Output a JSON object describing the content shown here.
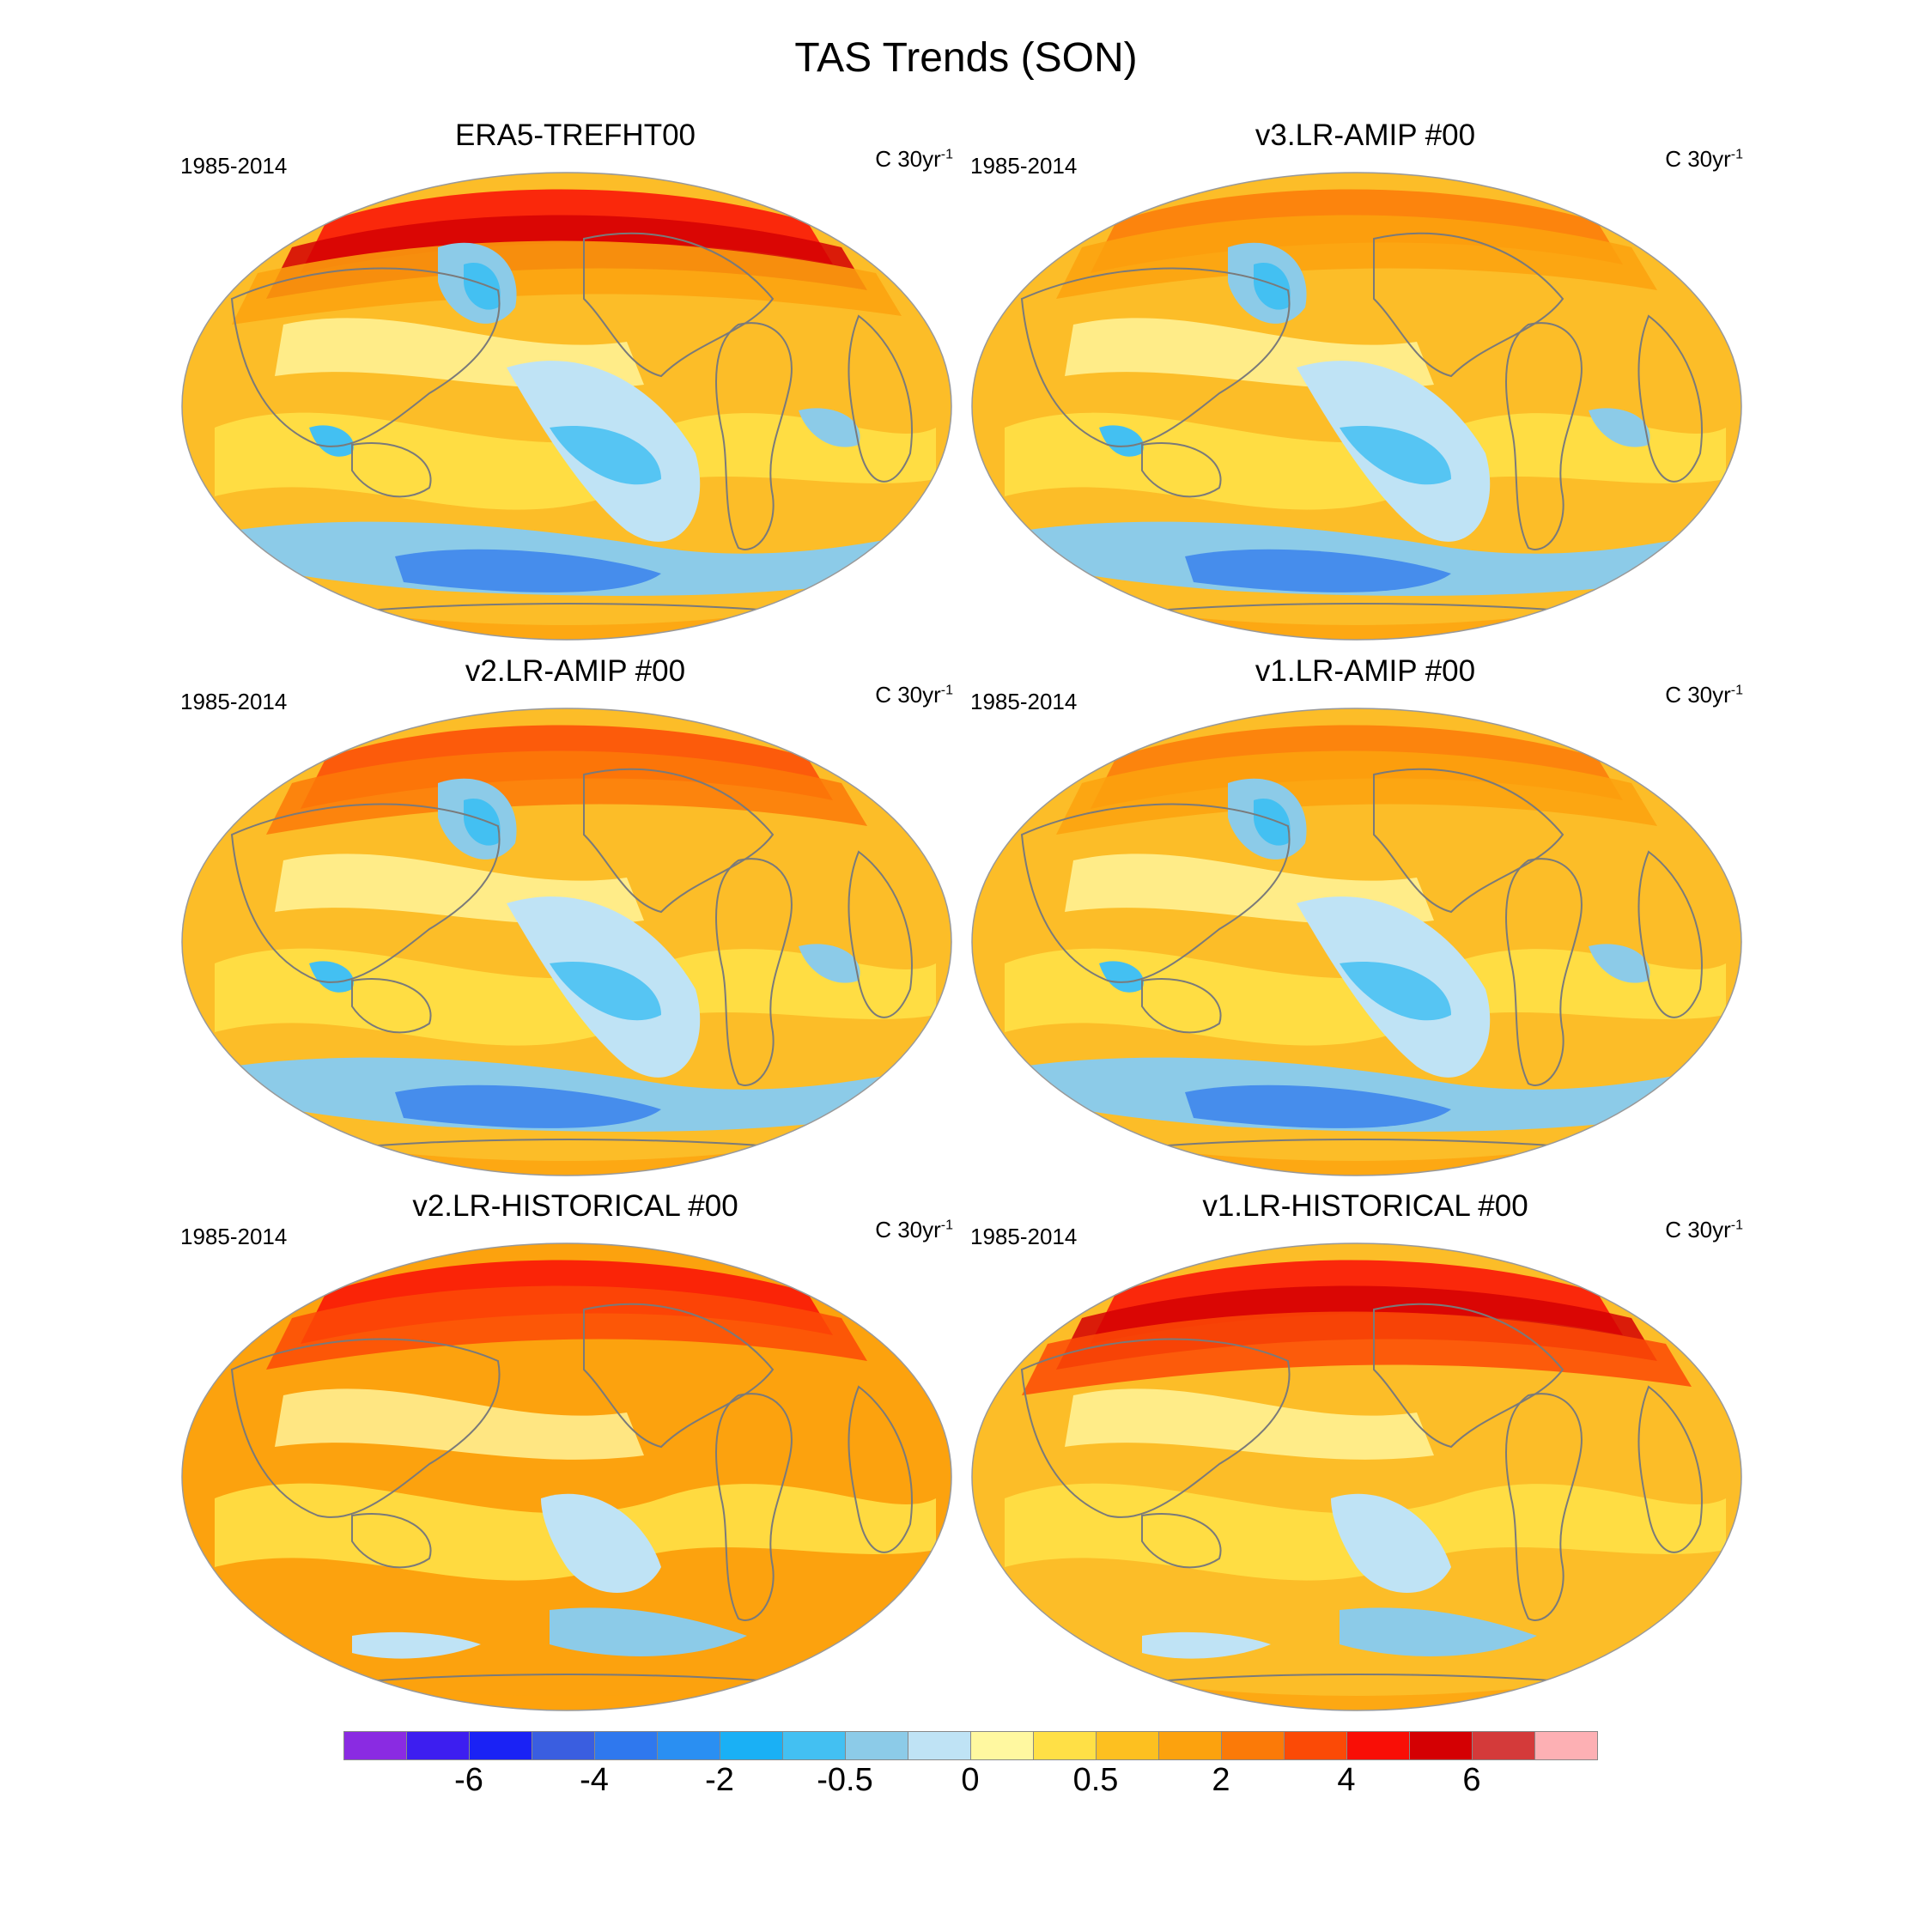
{
  "title": "TAS Trends (SON)",
  "panels": [
    {
      "name": "ERA5-TREFHT00",
      "period": "1985-2014",
      "units": "C 30yr",
      "units_sup": "-1",
      "style": "era5"
    },
    {
      "name": "v3.LR-AMIP  #00",
      "period": "1985-2014",
      "units": "C 30yr",
      "units_sup": "-1",
      "style": "amip"
    },
    {
      "name": "v2.LR-AMIP  #00",
      "period": "1985-2014",
      "units": "C 30yr",
      "units_sup": "-1",
      "style": "amip2"
    },
    {
      "name": "v1.LR-AMIP  #00",
      "period": "1985-2014",
      "units": "C 30yr",
      "units_sup": "-1",
      "style": "amip"
    },
    {
      "name": "v2.LR-HISTORICAL  #00",
      "period": "1985-2014",
      "units": "C 30yr",
      "units_sup": "-1",
      "style": "hist"
    },
    {
      "name": "v1.LR-HISTORICAL  #00",
      "period": "1985-2014",
      "units": "C 30yr",
      "units_sup": "-1",
      "style": "hist1"
    }
  ],
  "colorbar": {
    "colors": [
      "#8a2be2",
      "#3d1ef0",
      "#1a22f5",
      "#3a5ee0",
      "#2f78ee",
      "#2a8ff2",
      "#1ab0f5",
      "#43c0f2",
      "#8ccbe8",
      "#bfe3f5",
      "#fff8a0",
      "#ffe046",
      "#fdc020",
      "#fca20e",
      "#fb7a08",
      "#fb4a06",
      "#f90e06",
      "#d40003",
      "#d43a3a",
      "#fdb0b4"
    ],
    "labels": [
      {
        "text": "-6",
        "box": 2
      },
      {
        "text": "-4",
        "box": 4
      },
      {
        "text": "-2",
        "box": 6
      },
      {
        "text": "-0.5",
        "box": 8
      },
      {
        "text": "0",
        "box": 10
      },
      {
        "text": "0.5",
        "box": 12
      },
      {
        "text": "2",
        "box": 14
      },
      {
        "text": "4",
        "box": 16
      },
      {
        "text": "6",
        "box": 18
      }
    ]
  }
}
